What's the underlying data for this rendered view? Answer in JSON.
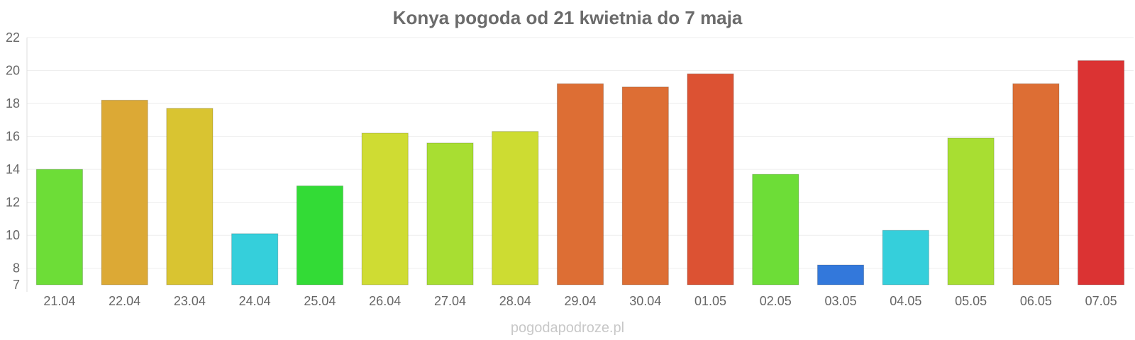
{
  "chart_data": {
    "type": "bar",
    "title": "Konya pogoda od 21 kwietnia do 7 maja",
    "categories": [
      "21.04",
      "22.04",
      "23.04",
      "24.04",
      "25.04",
      "26.04",
      "27.04",
      "28.04",
      "29.04",
      "30.04",
      "01.05",
      "02.05",
      "03.05",
      "04.05",
      "05.05",
      "06.05",
      "07.05"
    ],
    "values": [
      14.0,
      18.2,
      17.7,
      10.1,
      13.0,
      16.2,
      15.6,
      16.3,
      19.2,
      19.0,
      19.8,
      13.7,
      8.2,
      10.3,
      15.9,
      19.2,
      20.6
    ],
    "colors": [
      "#6ddd37",
      "#dca935",
      "#d9c431",
      "#35cfdb",
      "#33db36",
      "#cfdc33",
      "#a8de32",
      "#cddc32",
      "#dd6e34",
      "#dd6e34",
      "#dc5233",
      "#6ddd37",
      "#3378db",
      "#35cfdb",
      "#a8de32",
      "#dd6e34",
      "#db3333"
    ],
    "yticks": [
      7,
      8,
      10,
      12,
      14,
      16,
      18,
      20,
      22
    ],
    "ylim": [
      7,
      22
    ],
    "xlabel": "",
    "ylabel": "",
    "grid": true
  },
  "watermark": "pogodapodroze.pl"
}
